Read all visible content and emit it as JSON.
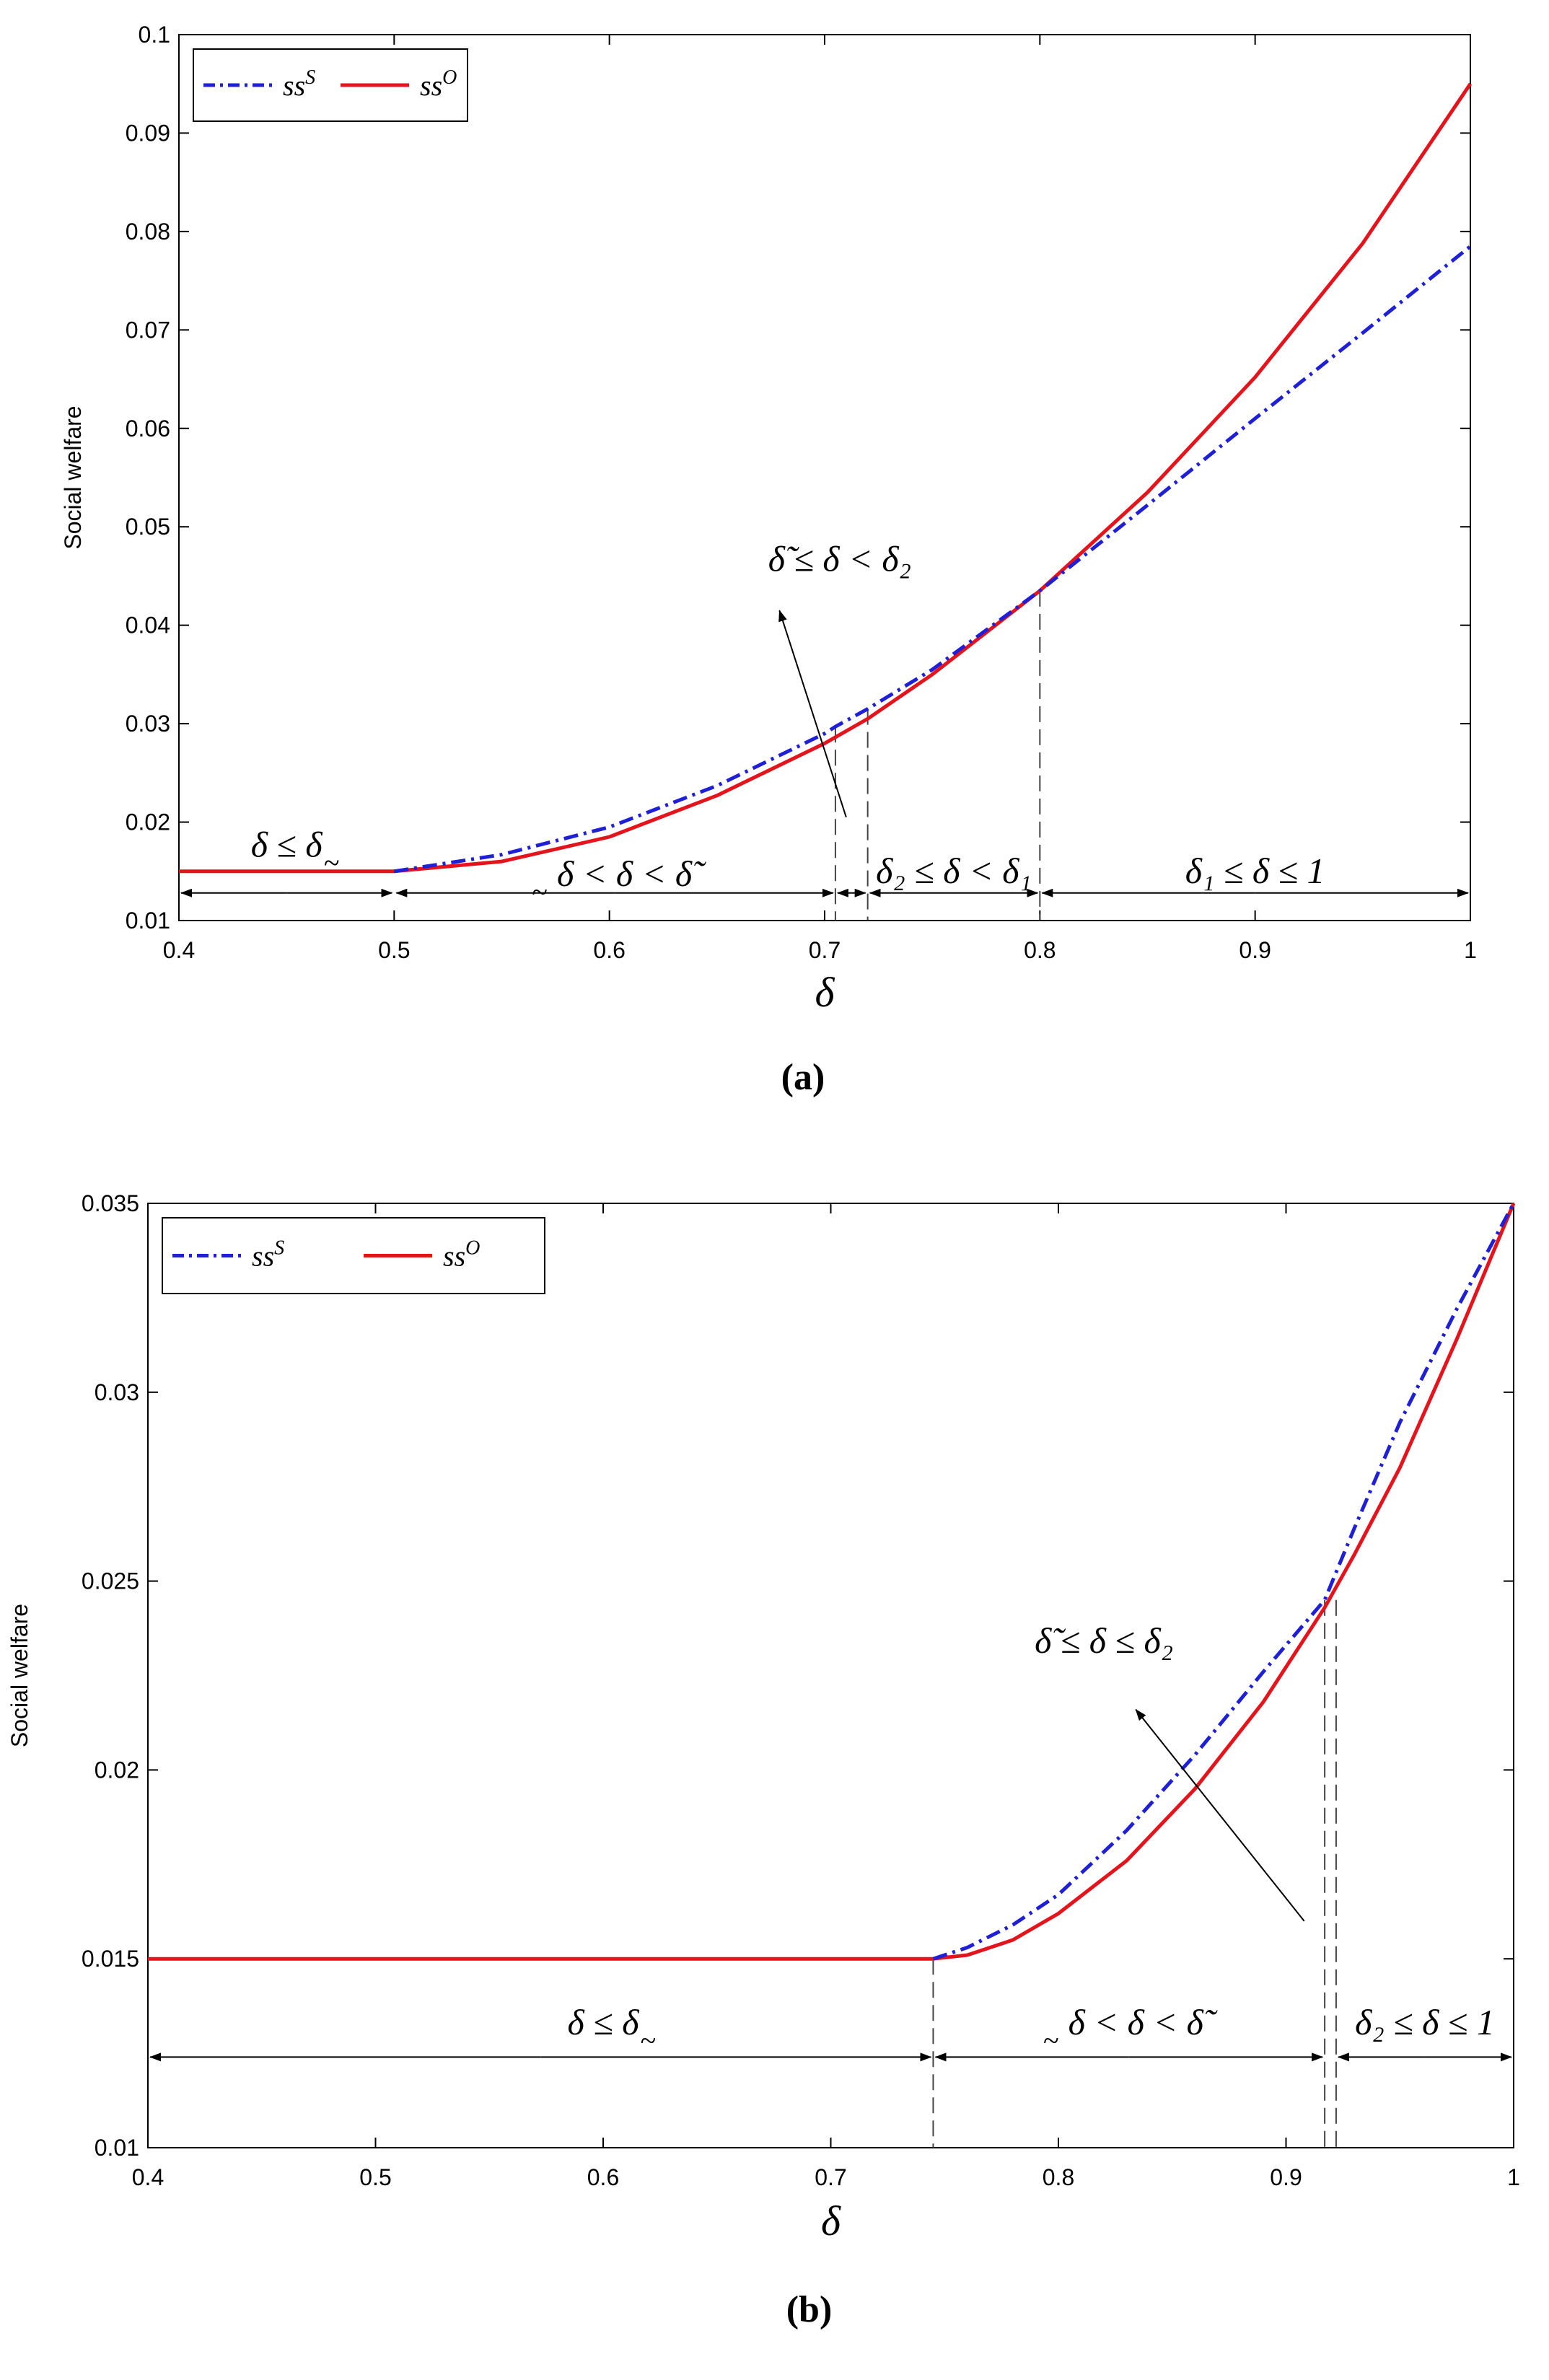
{
  "colors": {
    "ss_s": "#1f1fd6",
    "ss_o": "#e3141c",
    "axis": "#000000",
    "guide": "#444444"
  },
  "chart_data": [
    {
      "type": "line",
      "caption": "(a)",
      "xlabel": "δ",
      "ylabel": "Social welfare",
      "xlim": [
        0.4,
        1.0
      ],
      "ylim": [
        0.01,
        0.1
      ],
      "xticks": [
        0.4,
        0.5,
        0.6,
        0.7,
        0.8,
        0.9,
        1
      ],
      "xtick_labels": [
        "0.4",
        "0.5",
        "0.6",
        "0.7",
        "0.8",
        "0.9",
        "1"
      ],
      "yticks": [
        0.01,
        0.02,
        0.03,
        0.04,
        0.05,
        0.06,
        0.07,
        0.08,
        0.09,
        0.1
      ],
      "ytick_labels": [
        "0.01",
        "0.02",
        "0.03",
        "0.04",
        "0.05",
        "0.06",
        "0.07",
        "0.08",
        "0.09",
        "0.1"
      ],
      "grid": false,
      "legend": {
        "placement": "top-left",
        "items": [
          "ss^S",
          "ss^O"
        ]
      },
      "series": [
        {
          "name": "ss^S",
          "style": "dash-dot",
          "x": [
            0.5,
            0.55,
            0.6,
            0.65,
            0.7,
            0.705,
            0.72,
            0.75,
            0.8,
            0.85,
            0.9,
            0.95,
            1.0
          ],
          "y": [
            0.015,
            0.0167,
            0.0195,
            0.0237,
            0.029,
            0.0297,
            0.0315,
            0.0355,
            0.0435,
            0.0522,
            0.061,
            0.0697,
            0.0785
          ]
        },
        {
          "name": "ss^O",
          "style": "solid",
          "x": [
            0.4,
            0.5,
            0.55,
            0.6,
            0.65,
            0.7,
            0.72,
            0.75,
            0.8,
            0.85,
            0.9,
            0.95,
            1.0
          ],
          "y": [
            0.015,
            0.015,
            0.016,
            0.0185,
            0.0227,
            0.028,
            0.0305,
            0.035,
            0.0435,
            0.0535,
            0.0652,
            0.0788,
            0.095
          ]
        }
      ],
      "guides": [
        {
          "x": 0.705,
          "y_top": 0.0297
        },
        {
          "x": 0.72,
          "y_top": 0.0315
        },
        {
          "x": 0.8,
          "y_top": 0.0435
        }
      ],
      "intervals": [
        {
          "x0": 0.4,
          "x1": 0.5,
          "y": 0.0128,
          "label_main": "δ ≤ δ",
          "label_tilde": "~",
          "label_x": 0.45,
          "label_y": 0.0165
        },
        {
          "x0": 0.5,
          "x1": 0.705,
          "y": 0.0128,
          "label_main": "δ < δ < δ̃",
          "label_tilde": "~",
          "label_x": 0.607,
          "label_y": 0.0135
        },
        {
          "x0": 0.705,
          "x1": 0.72,
          "y": 0.0128
        },
        {
          "x0": 0.72,
          "x1": 0.8,
          "y": 0.0128,
          "label_main": "δ₂ ≤ δ < δ₁",
          "label_x": 0.76,
          "label_y": 0.0138
        },
        {
          "x0": 0.8,
          "x1": 1.0,
          "y": 0.0128,
          "label_main": "δ₁ ≤ δ ≤ 1",
          "label_x": 0.9,
          "label_y": 0.0138
        }
      ],
      "callout": {
        "label": "δ̃ ≤ δ < δ₂",
        "label_x": 0.707,
        "label_y": 0.0455,
        "from_x": 0.71,
        "from_y": 0.0205,
        "to_x": 0.679,
        "to_y": 0.0415
      }
    },
    {
      "type": "line",
      "caption": "(b)",
      "xlabel": "δ",
      "ylabel": "Social welfare",
      "xlim": [
        0.4,
        1.0
      ],
      "ylim": [
        0.01,
        0.035
      ],
      "xticks": [
        0.4,
        0.5,
        0.6,
        0.7,
        0.8,
        0.9,
        1
      ],
      "xtick_labels": [
        "0.4",
        "0.5",
        "0.6",
        "0.7",
        "0.8",
        "0.9",
        "1"
      ],
      "yticks": [
        0.01,
        0.015,
        0.02,
        0.025,
        0.03,
        0.035
      ],
      "ytick_labels": [
        "0.01",
        "0.015",
        "0.02",
        "0.025",
        "0.03",
        "0.035"
      ],
      "grid": false,
      "legend": {
        "placement": "top-left",
        "items": [
          "ss^S",
          "ss^O"
        ]
      },
      "series": [
        {
          "name": "ss^S",
          "style": "dash-dot",
          "x": [
            0.745,
            0.76,
            0.78,
            0.8,
            0.83,
            0.86,
            0.89,
            0.917,
            0.93,
            0.95,
            0.975,
            1.0
          ],
          "y": [
            0.015,
            0.0153,
            0.0159,
            0.0167,
            0.0184,
            0.0204,
            0.0226,
            0.0245,
            0.0264,
            0.0292,
            0.0322,
            0.035
          ]
        },
        {
          "name": "ss^O",
          "style": "solid",
          "x": [
            0.4,
            0.745,
            0.76,
            0.78,
            0.8,
            0.83,
            0.86,
            0.89,
            0.917,
            0.93,
            0.95,
            0.975,
            1.0
          ],
          "y": [
            0.015,
            0.015,
            0.0151,
            0.0155,
            0.0162,
            0.0176,
            0.0195,
            0.0218,
            0.0243,
            0.0257,
            0.028,
            0.0314,
            0.035
          ]
        }
      ],
      "guides": [
        {
          "x": 0.745,
          "y_top": 0.015
        },
        {
          "x": 0.917,
          "y_top": 0.0245
        },
        {
          "x": 0.922,
          "y_top": 0.0245
        }
      ],
      "intervals": [
        {
          "x0": 0.4,
          "x1": 0.745,
          "y": 0.0124,
          "label_main": "δ ≤ δ",
          "label_tilde": "~",
          "label_x": 0.6,
          "label_y": 0.013
        },
        {
          "x0": 0.745,
          "x1": 0.917,
          "y": 0.0124,
          "label_main": "δ < δ < δ̃",
          "label_tilde": "~",
          "label_x": 0.834,
          "label_y": 0.013
        },
        {
          "x0": 0.922,
          "x1": 1.0,
          "y": 0.0124,
          "label_main": "δ₂ ≤ δ ≤ 1",
          "label_x": 0.961,
          "label_y": 0.013
        }
      ],
      "callout": {
        "label": "δ̃ ≤ δ ≤ δ₂",
        "label_x": 0.82,
        "label_y": 0.0231,
        "from_x": 0.908,
        "from_y": 0.016,
        "to_x": 0.834,
        "to_y": 0.0216
      }
    }
  ]
}
